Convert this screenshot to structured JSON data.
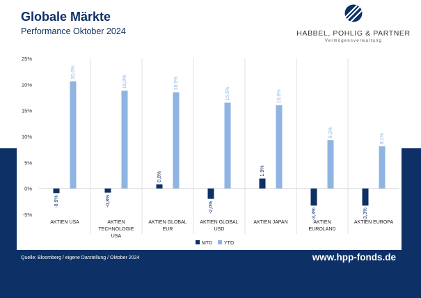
{
  "header": {
    "title": "Globale Märkte",
    "subtitle": "Performance Oktober 2024"
  },
  "logo": {
    "name": "HABBEL, POHLIG & PARTNER",
    "tagline": "Vermögensverwaltung"
  },
  "footer": {
    "source": "Quelle: Bloomberg / eigene Darstellung / Oktober 2024",
    "website": "www.hpp-fonds.de"
  },
  "colors": {
    "navy": "#0d3066",
    "mtd": "#0d3066",
    "ytd": "#8fb4e3",
    "grid": "#d9d9d9"
  },
  "chart_data": {
    "type": "bar",
    "categories": [
      [
        "AKTIEN USA"
      ],
      [
        "AKTIEN",
        "TECHNOLOGIE",
        "USA"
      ],
      [
        "AKTIEN GLOBAL",
        "EUR"
      ],
      [
        "AKTIEN GLOBAL",
        "USD"
      ],
      [
        "AKTIEN JAPAN"
      ],
      [
        "AKTIEN",
        "EUROLAND"
      ],
      [
        "AKTIEN EUROPA"
      ]
    ],
    "series": [
      {
        "name": "MTD",
        "values": [
          -0.9,
          -0.8,
          0.8,
          -2.0,
          1.9,
          -3.3,
          -3.3
        ],
        "labels": [
          "-0,9%",
          "-0,8%",
          "0,8%",
          "-2,0%",
          "1,9%",
          "-3,3%",
          "-3,3%"
        ]
      },
      {
        "name": "YTD",
        "values": [
          20.6,
          18.8,
          18.5,
          16.5,
          16.0,
          9.3,
          8.1
        ],
        "labels": [
          "20,6%",
          "18,8%",
          "18,5%",
          "16,5%",
          "16,0%",
          "9,3%",
          "8,1%"
        ]
      }
    ],
    "yticks": [
      "-5%",
      "0%",
      "5%",
      "10%",
      "15%",
      "20%",
      "25%"
    ],
    "ylim": [
      -5,
      25
    ],
    "grid": "vertical separators between categories",
    "legend": "bottom-center"
  }
}
